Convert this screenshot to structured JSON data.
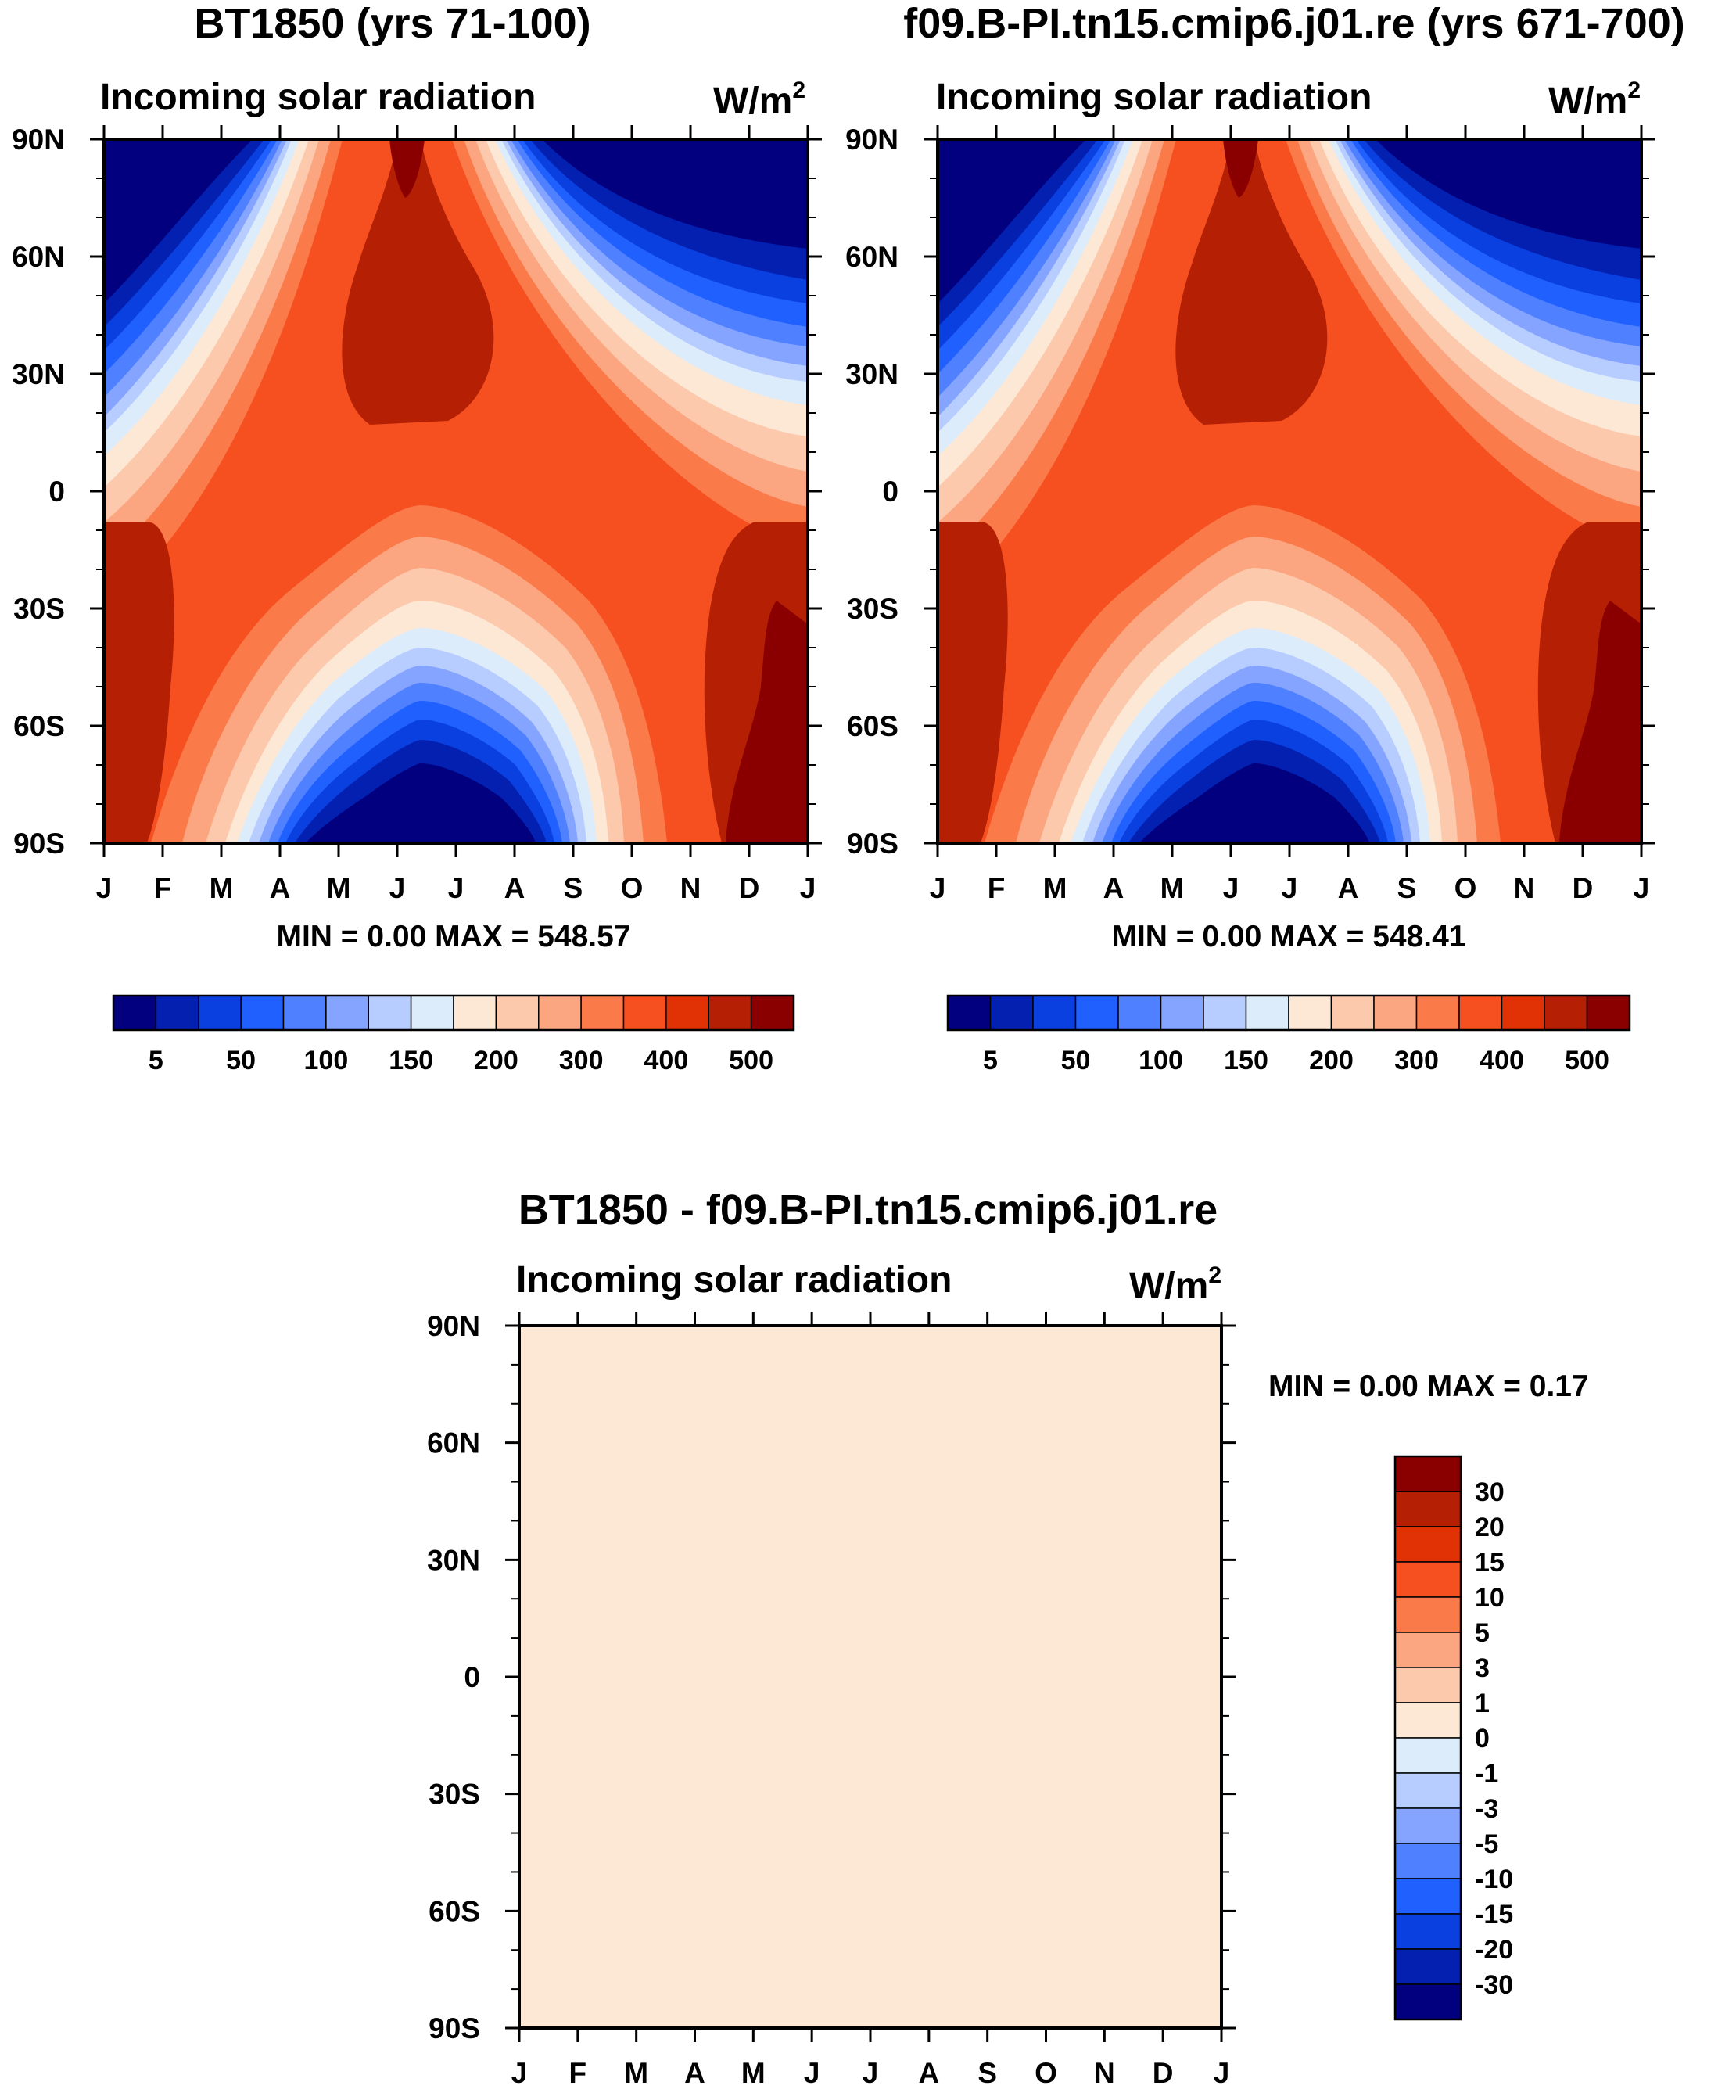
{
  "panels": [
    {
      "title": "BT1850 (yrs 71-100)",
      "subtitle": "Incoming solar radiation",
      "units": "W/m",
      "units_sup": "2",
      "minmax": "MIN =   0.00 MAX = 548.57"
    },
    {
      "title": "f09.B-PI.tn15.cmip6.j01.re (yrs 671-700)",
      "subtitle": "Incoming solar radiation",
      "units": "W/m",
      "units_sup": "2",
      "minmax": "MIN =   0.00 MAX = 548.41"
    },
    {
      "title": "BT1850 - f09.B-PI.tn15.cmip6.j01.re",
      "subtitle": "Incoming solar radiation",
      "units": "W/m",
      "units_sup": "2",
      "minmax": "MIN =   0.00 MAX =   0.17"
    }
  ],
  "chart_data": [
    {
      "type": "heatmap",
      "title": "BT1850 (yrs 71-100)",
      "subtitle": "Incoming solar radiation",
      "units": "W/m2",
      "x_ticks": [
        "J",
        "F",
        "M",
        "A",
        "M",
        "J",
        "J",
        "A",
        "S",
        "O",
        "N",
        "D",
        "J"
      ],
      "y_ticks": [
        "90N",
        "60N",
        "30N",
        "0",
        "30S",
        "60S",
        "90S"
      ],
      "min": 0.0,
      "max": 548.57,
      "colorbar_labels": [
        "5",
        "50",
        "100",
        "150",
        "200",
        "300",
        "400",
        "500"
      ],
      "colorbar_colors": [
        "#02007f",
        "#0420b0",
        "#0a40e0",
        "#2060ff",
        "#4f80ff",
        "#84a4ff",
        "#b7ccff",
        "#dcecfb",
        "#fde8d5",
        "#fcc9ac",
        "#fba680",
        "#fb7a4a",
        "#f65020",
        "#e03204",
        "#b52005",
        "#8a0000"
      ],
      "colorbar_placement": "bottom",
      "pattern": "annual insolation cycle: high values in local summer hemisphere, near zero in polar night"
    },
    {
      "type": "heatmap",
      "title": "f09.B-PI.tn15.cmip6.j01.re (yrs 671-700)",
      "subtitle": "Incoming solar radiation",
      "units": "W/m2",
      "x_ticks": [
        "J",
        "F",
        "M",
        "A",
        "M",
        "J",
        "J",
        "A",
        "S",
        "O",
        "N",
        "D",
        "J"
      ],
      "y_ticks": [
        "90N",
        "60N",
        "30N",
        "0",
        "30S",
        "60S",
        "90S"
      ],
      "min": 0.0,
      "max": 548.41,
      "colorbar_labels": [
        "5",
        "50",
        "100",
        "150",
        "200",
        "300",
        "400",
        "500"
      ],
      "colorbar_colors": [
        "#02007f",
        "#0420b0",
        "#0a40e0",
        "#2060ff",
        "#4f80ff",
        "#84a4ff",
        "#b7ccff",
        "#dcecfb",
        "#fde8d5",
        "#fcc9ac",
        "#fba680",
        "#fb7a4a",
        "#f65020",
        "#e03204",
        "#b52005",
        "#8a0000"
      ],
      "colorbar_placement": "bottom",
      "pattern": "annual insolation cycle: high values in local summer hemisphere, near zero in polar night"
    },
    {
      "type": "heatmap",
      "title": "BT1850 - f09.B-PI.tn15.cmip6.j01.re",
      "subtitle": "Incoming solar radiation",
      "units": "W/m2",
      "x_ticks": [
        "J",
        "F",
        "M",
        "A",
        "M",
        "J",
        "J",
        "A",
        "S",
        "O",
        "N",
        "D",
        "J"
      ],
      "y_ticks": [
        "90N",
        "60N",
        "30N",
        "0",
        "30S",
        "60S",
        "90S"
      ],
      "min": 0.0,
      "max": 0.17,
      "fill_color": "#fde8d5",
      "colorbar_labels": [
        "30",
        "20",
        "15",
        "10",
        "5",
        "3",
        "1",
        "0",
        "-1",
        "-3",
        "-5",
        "-10",
        "-15",
        "-20",
        "-30"
      ],
      "colorbar_colors": [
        "#8a0000",
        "#b52005",
        "#e03204",
        "#f65020",
        "#fb7a4a",
        "#fba680",
        "#fcc9ac",
        "#fde8d5",
        "#dcecfb",
        "#b7ccff",
        "#84a4ff",
        "#4f80ff",
        "#2060ff",
        "#0a40e0",
        "#0420b0",
        "#02007f"
      ],
      "colorbar_placement": "right"
    }
  ]
}
